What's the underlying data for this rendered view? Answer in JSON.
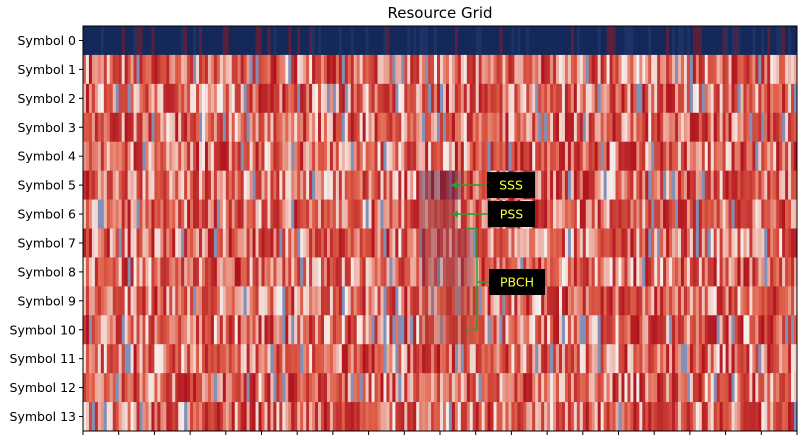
{
  "chart_data": {
    "type": "heatmap",
    "title": "Resource Grid",
    "xlabel": "",
    "ylabel": "",
    "rows": [
      "Symbol 0",
      "Symbol 1",
      "Symbol 2",
      "Symbol 3",
      "Symbol 4",
      "Symbol 5",
      "Symbol 6",
      "Symbol 7",
      "Symbol 8",
      "Symbol 9",
      "Symbol 10",
      "Symbol 11",
      "Symbol 12",
      "Symbol 13"
    ],
    "num_subcarriers": 240,
    "annotations": [
      {
        "label": "SSS",
        "row": "Symbol 5"
      },
      {
        "label": "PSS",
        "row": "Symbol 6"
      },
      {
        "label": "PBCH",
        "rows": [
          "Symbol 7",
          "Symbol 8",
          "Symbol 9",
          "Symbol 10"
        ]
      }
    ],
    "colors": {
      "row0": "#14285a",
      "high": "#b0141e",
      "mid": "#e0604a",
      "low": "#f7f0ee",
      "annotation_box": "#000000",
      "annotation_text": "#ffff33",
      "arrow": "#2ca02c"
    }
  }
}
